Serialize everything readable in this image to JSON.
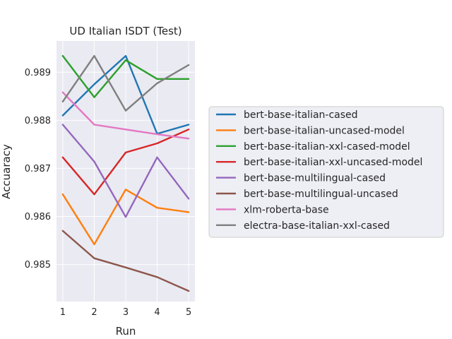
{
  "chart_data": {
    "type": "line",
    "title": "UD Italian ISDT (Test)",
    "xlabel": "Run",
    "ylabel": "Accuaracy",
    "x": [
      1,
      2,
      3,
      4,
      5
    ],
    "xlim": [
      0.8,
      5.2
    ],
    "ylim": [
      0.98423,
      0.98965
    ],
    "xticks": [
      "1",
      "2",
      "3",
      "4",
      "5"
    ],
    "yticks": [
      "0.985",
      "0.986",
      "0.987",
      "0.988",
      "0.989"
    ],
    "ytick_values": [
      0.985,
      0.986,
      0.987,
      0.988,
      0.989
    ],
    "grid": true,
    "legend_placement": "center-right, outside plot",
    "series": [
      {
        "name": "bert-base-italian-cased",
        "color": "#1f77b4",
        "values": [
          0.9881,
          0.98875,
          0.98934,
          0.98772,
          0.98791
        ]
      },
      {
        "name": "bert-base-italian-uncased-model",
        "color": "#ff7f0e",
        "values": [
          0.98646,
          0.98542,
          0.98656,
          0.98618,
          0.98609
        ]
      },
      {
        "name": "bert-base-italian-xxl-cased-model",
        "color": "#2ca02c",
        "values": [
          0.98934,
          0.98848,
          0.98925,
          0.98886,
          0.98886
        ]
      },
      {
        "name": "bert-base-italian-xxl-uncased-model",
        "color": "#d62728",
        "values": [
          0.98723,
          0.98646,
          0.98733,
          0.98752,
          0.98781
        ]
      },
      {
        "name": "bert-base-multilingual-cased",
        "color": "#9467bd",
        "values": [
          0.98791,
          0.98714,
          0.98599,
          0.98723,
          0.98637
        ]
      },
      {
        "name": "bert-base-multilingual-uncased",
        "color": "#8c564b",
        "values": [
          0.9857,
          0.98513,
          0.98494,
          0.98474,
          0.98445
        ]
      },
      {
        "name": "xlm-roberta-base",
        "color": "#e377c2",
        "values": [
          0.98858,
          0.98791,
          0.98781,
          0.98771,
          0.98762
        ]
      },
      {
        "name": "electra-base-italian-xxl-cased",
        "color": "#7f7f7f",
        "values": [
          0.98839,
          0.98934,
          0.9882,
          0.98877,
          0.98915
        ]
      }
    ]
  }
}
